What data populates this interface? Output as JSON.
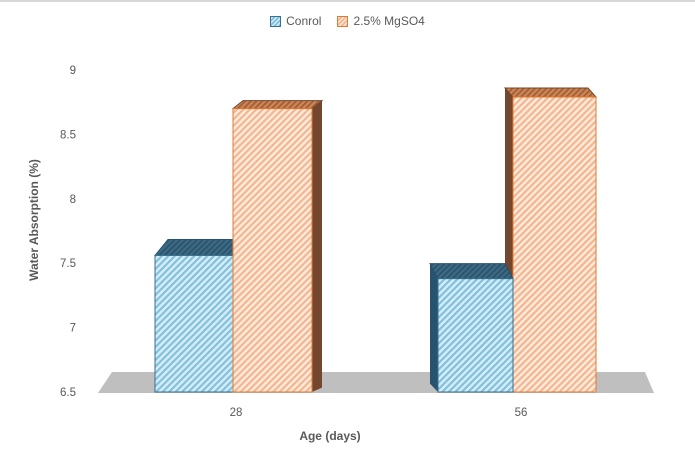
{
  "chart": {
    "background": "#ffffff",
    "border_color": "#d8d8d8",
    "text_color": "#595959"
  },
  "chart_data": {
    "type": "bar",
    "style": "3d-clustered-column-hatched",
    "title": "",
    "xlabel": "Age (days)",
    "ylabel": "Water Absorption (%)",
    "categories": [
      "28",
      "56"
    ],
    "series": [
      {
        "name": "Conrol",
        "values": [
          7.56,
          7.38
        ],
        "colors": {
          "face_bg": "#d5ecf6",
          "face_stripe": "#7fc0dc",
          "top_bg": "#3d6a85",
          "top_stripe": "#2c536b",
          "side": "#27536f",
          "border": "#39708f"
        }
      },
      {
        "name": "2.5% MgSO4",
        "values": [
          8.7,
          8.79
        ],
        "colors": {
          "face_bg": "#fdeadb",
          "face_stripe": "#f4b48e",
          "top_bg": "#cd8656",
          "top_stripe": "#a35e36",
          "side": "#74462d",
          "border": "#e07b35"
        }
      }
    ],
    "ylim": [
      6.5,
      9
    ],
    "yticks": [
      6.5,
      7,
      7.5,
      8,
      8.5,
      9
    ],
    "ytick_labels": [
      "6.5",
      "7",
      "7.5",
      "8",
      "8.5",
      "9"
    ],
    "legend_position": "top",
    "grid": false,
    "floor_color": "#bfbfbf"
  }
}
